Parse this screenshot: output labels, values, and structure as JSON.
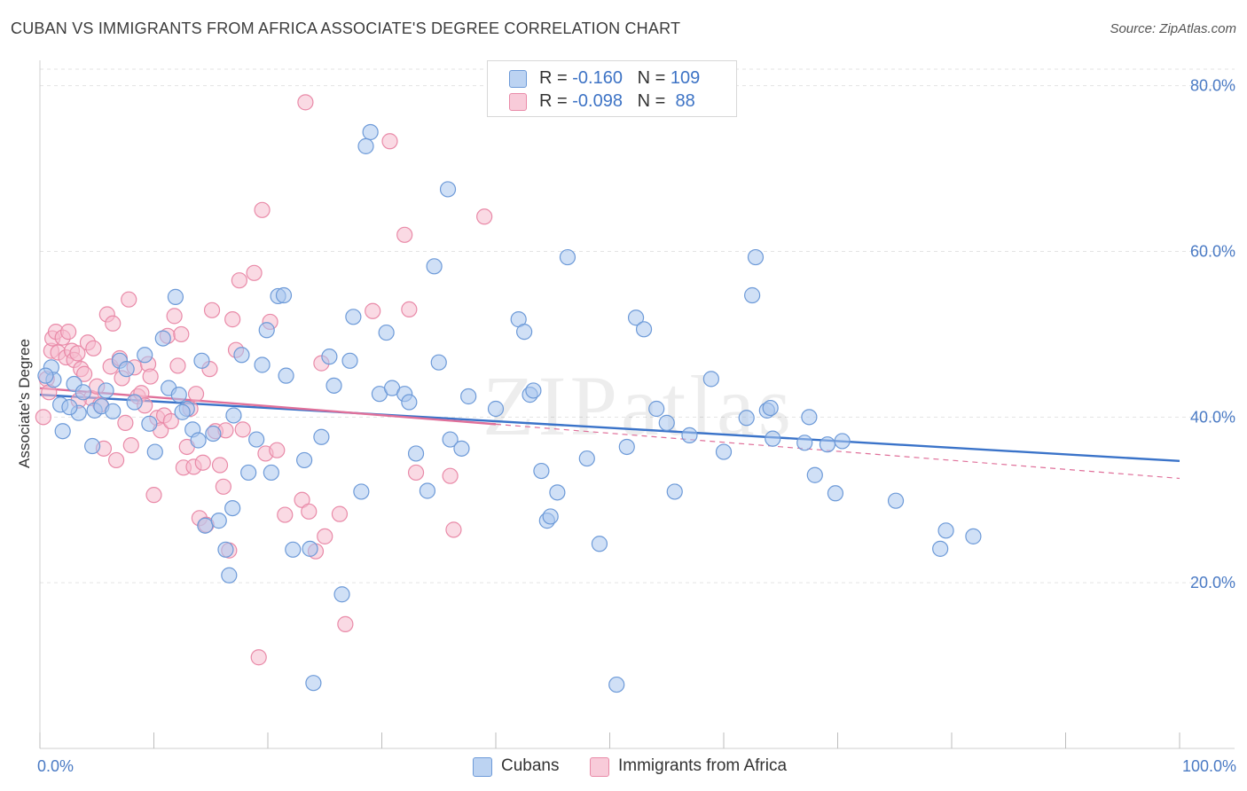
{
  "title": "CUBAN VS IMMIGRANTS FROM AFRICA ASSOCIATE'S DEGREE CORRELATION CHART",
  "source": "Source: ZipAtlas.com",
  "watermark": "ZIPatlas",
  "colors": {
    "blue_fill": "#a9c6ee",
    "blue_stroke": "#6d9ad8",
    "blue_line": "#3a73c9",
    "pink_fill": "#f6bccd",
    "pink_stroke": "#e98aa8",
    "pink_line": "#e0709a",
    "tick_text": "#4a7ac4",
    "grid": "#e3e3e3"
  },
  "legend": {
    "rows": [
      {
        "r_label": "R = ",
        "r_value": "-0.160",
        "n_label": "N = ",
        "n_value": "109"
      },
      {
        "r_label": "R = ",
        "r_value": "-0.098",
        "n_label": "N = ",
        "n_value": " 88"
      }
    ]
  },
  "bottom_legend": {
    "series1": "Cubans",
    "series2": "Immigrants from Africa"
  },
  "chart_data": {
    "type": "scatter",
    "title": "CUBAN VS IMMIGRANTS FROM AFRICA ASSOCIATE'S DEGREE CORRELATION CHART",
    "xlabel": "",
    "ylabel": "Associate's Degree",
    "xlim": [
      0,
      100
    ],
    "ylim": [
      0,
      82
    ],
    "x_ticks": [
      {
        "value": 0,
        "label": "0.0%"
      },
      {
        "value": 100,
        "label": "100.0%"
      }
    ],
    "y_ticks": [
      {
        "value": 20,
        "label": "20.0%"
      },
      {
        "value": 40,
        "label": "40.0%"
      },
      {
        "value": 60,
        "label": "60.0%"
      },
      {
        "value": 80,
        "label": "80.0%"
      }
    ],
    "grid": true,
    "legend_position": "top-center",
    "series": [
      {
        "name": "Cubans",
        "trend": {
          "x0": 0,
          "y0": 42.7,
          "x1": 100,
          "y1": 34.7,
          "dashed_from": null
        },
        "points": [
          [
            1.0,
            46.0
          ],
          [
            1.2,
            44.5
          ],
          [
            1.8,
            41.5
          ],
          [
            2.0,
            38.3
          ],
          [
            3.0,
            44.0
          ],
          [
            3.4,
            40.5
          ],
          [
            3.8,
            43.0
          ],
          [
            4.6,
            36.5
          ],
          [
            4.8,
            40.8
          ],
          [
            5.4,
            41.3
          ],
          [
            5.8,
            43.2
          ],
          [
            7.0,
            46.8
          ],
          [
            7.6,
            45.8
          ],
          [
            8.3,
            41.8
          ],
          [
            9.2,
            47.5
          ],
          [
            9.6,
            39.2
          ],
          [
            10.1,
            35.8
          ],
          [
            10.8,
            49.5
          ],
          [
            11.3,
            43.5
          ],
          [
            11.9,
            54.5
          ],
          [
            12.2,
            42.7
          ],
          [
            12.9,
            41.0
          ],
          [
            13.4,
            38.5
          ],
          [
            13.9,
            37.2
          ],
          [
            14.2,
            46.8
          ],
          [
            14.5,
            26.9
          ],
          [
            15.2,
            38.0
          ],
          [
            15.7,
            27.5
          ],
          [
            16.3,
            24.0
          ],
          [
            16.6,
            20.9
          ],
          [
            16.9,
            29.0
          ],
          [
            17.7,
            47.5
          ],
          [
            18.3,
            33.3
          ],
          [
            19.0,
            37.3
          ],
          [
            19.5,
            46.3
          ],
          [
            19.9,
            50.5
          ],
          [
            20.3,
            33.3
          ],
          [
            20.9,
            54.6
          ],
          [
            21.6,
            45.0
          ],
          [
            21.4,
            54.7
          ],
          [
            22.2,
            24.0
          ],
          [
            23.2,
            34.8
          ],
          [
            23.7,
            24.1
          ],
          [
            24.0,
            7.9
          ],
          [
            24.7,
            37.6
          ],
          [
            25.4,
            47.3
          ],
          [
            25.8,
            43.8
          ],
          [
            26.5,
            18.6
          ],
          [
            27.2,
            46.8
          ],
          [
            27.5,
            52.1
          ],
          [
            28.2,
            31.0
          ],
          [
            29.0,
            74.4
          ],
          [
            28.6,
            72.7
          ],
          [
            29.8,
            42.8
          ],
          [
            30.4,
            50.2
          ],
          [
            30.9,
            43.5
          ],
          [
            32.0,
            42.8
          ],
          [
            32.4,
            41.8
          ],
          [
            33.0,
            35.6
          ],
          [
            34.0,
            31.1
          ],
          [
            34.6,
            58.2
          ],
          [
            35.0,
            46.6
          ],
          [
            35.8,
            67.5
          ],
          [
            36.0,
            37.3
          ],
          [
            37.0,
            36.2
          ],
          [
            37.6,
            42.5
          ],
          [
            40.0,
            41.0
          ],
          [
            42.0,
            51.8
          ],
          [
            42.5,
            50.3
          ],
          [
            43.0,
            42.7
          ],
          [
            43.3,
            43.2
          ],
          [
            44.0,
            33.5
          ],
          [
            44.5,
            27.5
          ],
          [
            44.8,
            28.0
          ],
          [
            45.4,
            30.9
          ],
          [
            46.3,
            59.3
          ],
          [
            48.0,
            35.0
          ],
          [
            49.1,
            24.7
          ],
          [
            50.6,
            7.7
          ],
          [
            51.5,
            36.4
          ],
          [
            52.3,
            52.0
          ],
          [
            53.0,
            50.6
          ],
          [
            54.1,
            41.0
          ],
          [
            55.0,
            39.3
          ],
          [
            55.7,
            31.0
          ],
          [
            57.0,
            37.8
          ],
          [
            58.9,
            44.6
          ],
          [
            60.0,
            35.8
          ],
          [
            62.0,
            39.9
          ],
          [
            62.5,
            54.7
          ],
          [
            62.8,
            59.3
          ],
          [
            63.8,
            40.8
          ],
          [
            64.1,
            41.1
          ],
          [
            64.3,
            37.4
          ],
          [
            67.1,
            36.9
          ],
          [
            67.5,
            40.0
          ],
          [
            68.0,
            33.0
          ],
          [
            69.1,
            36.7
          ],
          [
            69.8,
            30.8
          ],
          [
            70.4,
            37.1
          ],
          [
            75.1,
            29.9
          ],
          [
            79.0,
            24.1
          ],
          [
            79.5,
            26.3
          ],
          [
            81.9,
            25.6
          ],
          [
            0.5,
            45.0
          ],
          [
            2.6,
            41.2
          ],
          [
            6.4,
            40.7
          ],
          [
            12.5,
            40.6
          ],
          [
            17.0,
            40.2
          ]
        ]
      },
      {
        "name": "Immigrants from Africa",
        "trend": {
          "x0": 0,
          "y0": 43.5,
          "x1": 100,
          "y1": 32.6,
          "dashed_from": 40
        },
        "points": [
          [
            0.3,
            40.0
          ],
          [
            0.6,
            44.6
          ],
          [
            1.0,
            48.0
          ],
          [
            1.1,
            49.5
          ],
          [
            1.4,
            50.3
          ],
          [
            1.6,
            47.8
          ],
          [
            2.0,
            49.6
          ],
          [
            2.3,
            47.2
          ],
          [
            2.5,
            50.3
          ],
          [
            2.8,
            48.0
          ],
          [
            3.0,
            46.9
          ],
          [
            3.3,
            47.7
          ],
          [
            3.6,
            45.8
          ],
          [
            3.9,
            45.2
          ],
          [
            4.2,
            49.0
          ],
          [
            4.5,
            42.3
          ],
          [
            4.7,
            48.3
          ],
          [
            5.0,
            43.7
          ],
          [
            5.3,
            41.5
          ],
          [
            5.6,
            36.2
          ],
          [
            5.9,
            52.4
          ],
          [
            6.2,
            46.1
          ],
          [
            6.4,
            51.3
          ],
          [
            6.7,
            34.8
          ],
          [
            7.0,
            47.1
          ],
          [
            7.2,
            44.7
          ],
          [
            7.5,
            39.3
          ],
          [
            7.8,
            54.2
          ],
          [
            8.0,
            36.6
          ],
          [
            8.3,
            46.0
          ],
          [
            8.6,
            42.5
          ],
          [
            8.9,
            42.9
          ],
          [
            9.2,
            41.4
          ],
          [
            9.5,
            46.4
          ],
          [
            9.7,
            44.9
          ],
          [
            10.0,
            30.6
          ],
          [
            10.3,
            39.9
          ],
          [
            10.6,
            38.4
          ],
          [
            10.9,
            40.2
          ],
          [
            11.2,
            49.8
          ],
          [
            11.5,
            39.5
          ],
          [
            11.8,
            52.2
          ],
          [
            12.1,
            46.2
          ],
          [
            12.4,
            50.0
          ],
          [
            12.6,
            33.9
          ],
          [
            12.9,
            36.4
          ],
          [
            13.2,
            41.0
          ],
          [
            13.5,
            34.0
          ],
          [
            13.7,
            42.8
          ],
          [
            14.0,
            27.8
          ],
          [
            14.3,
            34.5
          ],
          [
            14.6,
            27.0
          ],
          [
            14.9,
            45.8
          ],
          [
            15.1,
            52.9
          ],
          [
            15.4,
            38.3
          ],
          [
            15.8,
            34.2
          ],
          [
            16.1,
            31.6
          ],
          [
            16.3,
            38.4
          ],
          [
            16.6,
            23.9
          ],
          [
            16.9,
            51.8
          ],
          [
            17.2,
            48.1
          ],
          [
            17.5,
            56.5
          ],
          [
            17.8,
            38.5
          ],
          [
            18.8,
            57.4
          ],
          [
            19.2,
            11.0
          ],
          [
            19.5,
            65.0
          ],
          [
            19.8,
            35.6
          ],
          [
            20.2,
            51.5
          ],
          [
            20.8,
            36.0
          ],
          [
            21.5,
            28.2
          ],
          [
            23.0,
            30.0
          ],
          [
            23.3,
            78.0
          ],
          [
            23.6,
            28.6
          ],
          [
            24.2,
            23.8
          ],
          [
            24.7,
            46.5
          ],
          [
            25.0,
            25.6
          ],
          [
            26.3,
            28.3
          ],
          [
            26.8,
            15.0
          ],
          [
            29.2,
            52.8
          ],
          [
            30.7,
            73.3
          ],
          [
            32.0,
            62.0
          ],
          [
            32.4,
            53.0
          ],
          [
            33.0,
            33.3
          ],
          [
            36.0,
            32.9
          ],
          [
            36.3,
            26.4
          ],
          [
            39.0,
            64.2
          ],
          [
            0.8,
            43.0
          ],
          [
            3.4,
            42.0
          ]
        ]
      }
    ]
  }
}
